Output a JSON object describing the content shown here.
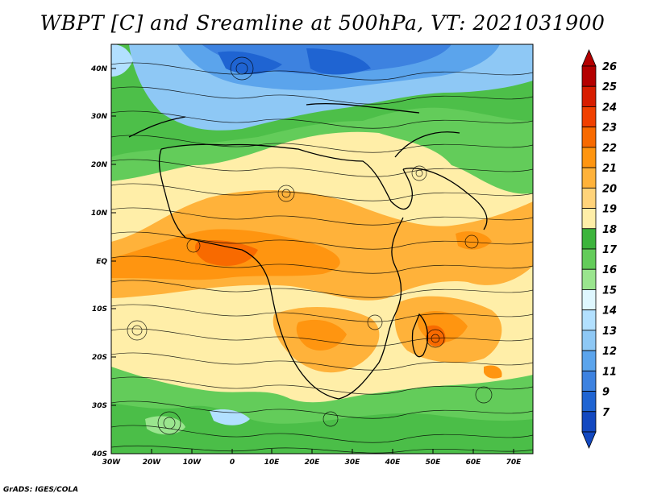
{
  "title": "WBPT [C] and Sreamline at 500hPa, VT: 2021031900",
  "credit": "GrADS: IGES/COLA",
  "lat_labels": [
    "40N",
    "30N",
    "20N",
    "10N",
    "EQ",
    "10S",
    "20S",
    "30S",
    "40S"
  ],
  "lon_labels": [
    "30W",
    "20W",
    "10W",
    "0",
    "10E",
    "20E",
    "30E",
    "40E",
    "50E",
    "60E",
    "70E"
  ],
  "colorbar": {
    "labels": [
      "26",
      "25",
      "24",
      "23",
      "22",
      "21",
      "20",
      "19",
      "18",
      "17",
      "16",
      "15",
      "14",
      "13",
      "12",
      "11",
      "9",
      "7"
    ],
    "colors": [
      "#b40000",
      "#d71d00",
      "#f04000",
      "#f86a00",
      "#ff9510",
      "#ffb23a",
      "#ffd37a",
      "#ffeea8",
      "#3cb43c",
      "#63cc5a",
      "#9ae58e",
      "#dff7ff",
      "#b2e0ff",
      "#8ec8f5",
      "#5ba4ec",
      "#3d82e0",
      "#1f64d2",
      "#1248c0"
    ]
  }
}
